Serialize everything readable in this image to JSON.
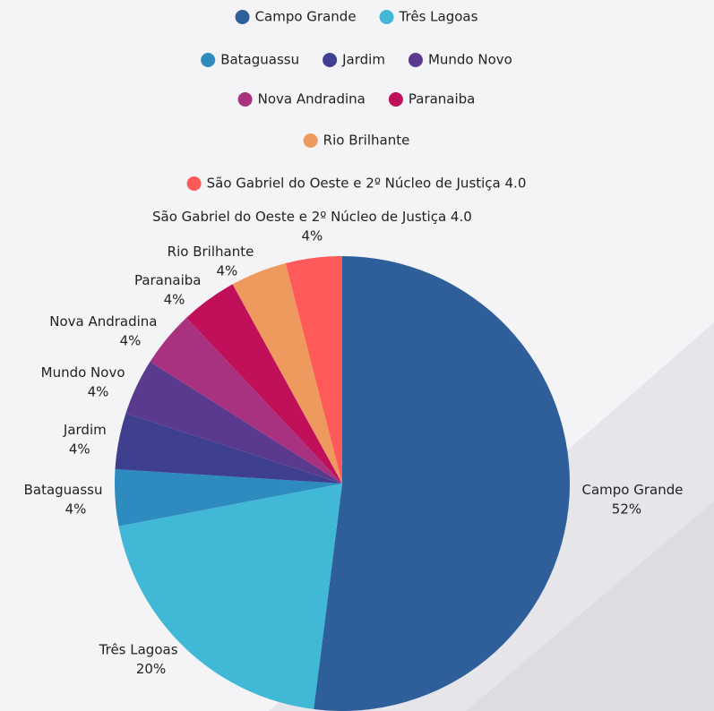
{
  "chart_data": {
    "type": "pie",
    "categories": [
      "Campo Grande",
      "Três Lagoas",
      "Bataguassu",
      "Jardim",
      "Mundo Novo",
      "Nova Andradina",
      "Paranaiba",
      "Rio Brilhante",
      "São Gabriel do Oeste e 2º Núcleo de Justiça 4.0"
    ],
    "values": [
      52,
      20,
      4,
      4,
      4,
      4,
      4,
      4,
      4
    ],
    "value_labels": [
      "52%",
      "20%",
      "4%",
      "4%",
      "4%",
      "4%",
      "4%",
      "4%",
      "4%"
    ],
    "colors": [
      "#2e5f9a",
      "#41b8d5",
      "#2e8bbf",
      "#3f3f8f",
      "#5a3a8e",
      "#a8327f",
      "#c0105a",
      "#ee9a5e",
      "#ff5a5a"
    ],
    "legend": "top"
  }
}
